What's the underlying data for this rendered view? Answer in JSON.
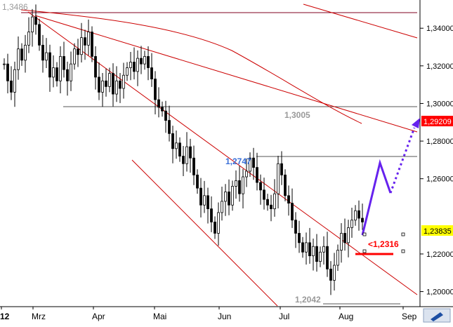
{
  "chart_data": {
    "type": "candlestick",
    "title": "",
    "x_ticks": [
      "12",
      "Mrz",
      "Apr",
      "Mai",
      "Jun",
      "Jul",
      "Aug",
      "Sep"
    ],
    "y_ticks": [
      "1,34000",
      "1,32000",
      "1,30000",
      "1,28000",
      "1,26000",
      "1,22000",
      "1,20000"
    ],
    "ylim": [
      1.192,
      1.355
    ],
    "current_price": "1,23835",
    "target_price": "1,29209",
    "current_price_color": "#ffff00",
    "target_price_color": "#ff0000",
    "grid": false,
    "annotations": [
      {
        "id": "top_level",
        "text": "1,3486",
        "value": 1.3486,
        "color": "#999999"
      },
      {
        "id": "level_13005",
        "text": "1,3005",
        "value": 1.3005,
        "color": "#999999"
      },
      {
        "id": "level_12747",
        "text": "1,2747",
        "value": 1.2747,
        "color": "#3a6fd8"
      },
      {
        "id": "level_12042",
        "text": "1,2042",
        "value": 1.2042,
        "color": "#999999"
      },
      {
        "id": "support_12316",
        "text": "<1,2316",
        "value": 1.2316,
        "color": "#ff0000"
      }
    ],
    "price_series": [
      {
        "t": 0,
        "close": 1.321
      },
      {
        "t": 1,
        "close": 1.312
      },
      {
        "t": 2,
        "close": 1.306
      },
      {
        "t": 3,
        "close": 1.318
      },
      {
        "t": 4,
        "close": 1.329
      },
      {
        "t": 5,
        "close": 1.323
      },
      {
        "t": 6,
        "close": 1.331
      },
      {
        "t": 7,
        "close": 1.338
      },
      {
        "t": 8,
        "close": 1.346
      },
      {
        "t": 9,
        "close": 1.342
      },
      {
        "t": 10,
        "close": 1.331
      },
      {
        "t": 11,
        "close": 1.323
      },
      {
        "t": 12,
        "close": 1.327
      },
      {
        "t": 13,
        "close": 1.314
      },
      {
        "t": 14,
        "close": 1.319
      },
      {
        "t": 15,
        "close": 1.312
      },
      {
        "t": 16,
        "close": 1.325
      },
      {
        "t": 17,
        "close": 1.318
      },
      {
        "t": 18,
        "close": 1.312
      },
      {
        "t": 19,
        "close": 1.321
      },
      {
        "t": 20,
        "close": 1.329
      },
      {
        "t": 21,
        "close": 1.326
      },
      {
        "t": 22,
        "close": 1.335
      },
      {
        "t": 23,
        "close": 1.331
      },
      {
        "t": 24,
        "close": 1.338
      },
      {
        "t": 25,
        "close": 1.325
      },
      {
        "t": 26,
        "close": 1.314
      },
      {
        "t": 27,
        "close": 1.306
      },
      {
        "t": 28,
        "close": 1.312
      },
      {
        "t": 29,
        "close": 1.309
      },
      {
        "t": 30,
        "close": 1.316
      },
      {
        "t": 31,
        "close": 1.305
      },
      {
        "t": 32,
        "close": 1.312
      },
      {
        "t": 33,
        "close": 1.308
      },
      {
        "t": 34,
        "close": 1.315
      },
      {
        "t": 35,
        "close": 1.319
      },
      {
        "t": 36,
        "close": 1.322
      },
      {
        "t": 37,
        "close": 1.317
      },
      {
        "t": 38,
        "close": 1.324
      },
      {
        "t": 39,
        "close": 1.321
      },
      {
        "t": 40,
        "close": 1.325
      },
      {
        "t": 41,
        "close": 1.319
      },
      {
        "t": 42,
        "close": 1.313
      },
      {
        "t": 43,
        "close": 1.302
      },
      {
        "t": 44,
        "close": 1.298
      },
      {
        "t": 45,
        "close": 1.296
      },
      {
        "t": 46,
        "close": 1.291
      },
      {
        "t": 47,
        "close": 1.284
      },
      {
        "t": 48,
        "close": 1.276
      },
      {
        "t": 49,
        "close": 1.279
      },
      {
        "t": 50,
        "close": 1.272
      },
      {
        "t": 51,
        "close": 1.268
      },
      {
        "t": 52,
        "close": 1.277
      },
      {
        "t": 53,
        "close": 1.271
      },
      {
        "t": 54,
        "close": 1.262
      },
      {
        "t": 55,
        "close": 1.255
      },
      {
        "t": 56,
        "close": 1.246
      },
      {
        "t": 57,
        "close": 1.251
      },
      {
        "t": 58,
        "close": 1.244
      },
      {
        "t": 59,
        "close": 1.237
      },
      {
        "t": 60,
        "close": 1.231
      },
      {
        "t": 61,
        "close": 1.242
      },
      {
        "t": 62,
        "close": 1.248
      },
      {
        "t": 63,
        "close": 1.253
      },
      {
        "t": 64,
        "close": 1.246
      },
      {
        "t": 65,
        "close": 1.256
      },
      {
        "t": 66,
        "close": 1.259
      },
      {
        "t": 67,
        "close": 1.252
      },
      {
        "t": 68,
        "close": 1.261
      },
      {
        "t": 69,
        "close": 1.264
      },
      {
        "t": 70,
        "close": 1.271
      },
      {
        "t": 71,
        "close": 1.266
      },
      {
        "t": 72,
        "close": 1.258
      },
      {
        "t": 73,
        "close": 1.254
      },
      {
        "t": 74,
        "close": 1.249
      },
      {
        "t": 75,
        "close": 1.246
      },
      {
        "t": 76,
        "close": 1.244
      },
      {
        "t": 77,
        "close": 1.252
      },
      {
        "t": 78,
        "close": 1.268
      },
      {
        "t": 79,
        "close": 1.262
      },
      {
        "t": 80,
        "close": 1.251
      },
      {
        "t": 81,
        "close": 1.247
      },
      {
        "t": 82,
        "close": 1.238
      },
      {
        "t": 83,
        "close": 1.231
      },
      {
        "t": 84,
        "close": 1.226
      },
      {
        "t": 85,
        "close": 1.221
      },
      {
        "t": 86,
        "close": 1.226
      },
      {
        "t": 87,
        "close": 1.219
      },
      {
        "t": 88,
        "close": 1.224
      },
      {
        "t": 89,
        "close": 1.216
      },
      {
        "t": 90,
        "close": 1.221
      },
      {
        "t": 91,
        "close": 1.224
      },
      {
        "t": 92,
        "close": 1.212
      },
      {
        "t": 93,
        "close": 1.206
      },
      {
        "t": 94,
        "close": 1.214
      },
      {
        "t": 95,
        "close": 1.222
      },
      {
        "t": 96,
        "close": 1.231
      },
      {
        "t": 97,
        "close": 1.226
      },
      {
        "t": 98,
        "close": 1.234
      },
      {
        "t": 99,
        "close": 1.238
      },
      {
        "t": 100,
        "close": 1.243
      },
      {
        "t": 101,
        "close": 1.239
      },
      {
        "t": 102,
        "close": 1.237
      }
    ]
  }
}
